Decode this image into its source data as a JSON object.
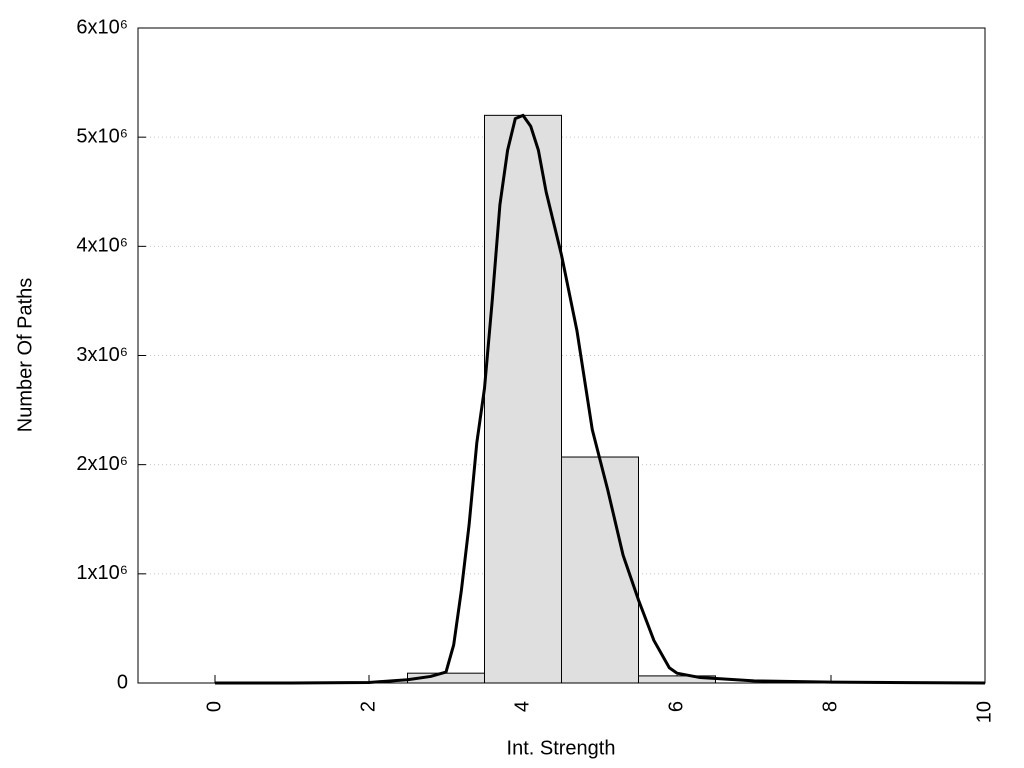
{
  "chart_data": {
    "type": "histogram",
    "xlabel": "Int. Strength",
    "ylabel": "Number Of Paths",
    "bins": [
      2.5,
      3.5,
      4.5,
      5.5,
      6.5
    ],
    "values": [
      90000,
      5200000,
      2070000,
      65000
    ],
    "color": "#dfdfdf",
    "curve": {
      "type": "line",
      "color": "#000000",
      "x": [
        0,
        1,
        2,
        2.5,
        2.8,
        3.0,
        3.1,
        3.2,
        3.3,
        3.4,
        3.5,
        3.6,
        3.7,
        3.8,
        3.9,
        4.0,
        4.1,
        4.2,
        4.3,
        4.5,
        4.7,
        4.9,
        5.1,
        5.3,
        5.5,
        5.7,
        5.9,
        6.0,
        6.3,
        7,
        8,
        9,
        10
      ],
      "values": [
        0,
        0,
        5000,
        30000,
        60000,
        100000,
        350000,
        850000,
        1450000,
        2200000,
        2700000,
        3500000,
        4380000,
        4880000,
        5170000,
        5200000,
        5100000,
        4880000,
        4500000,
        3920000,
        3230000,
        2320000,
        1770000,
        1170000,
        760000,
        390000,
        140000,
        90000,
        50000,
        20000,
        8000,
        3000,
        0
      ]
    },
    "xlim": [
      -1,
      10
    ],
    "xticks": [
      0,
      2,
      4,
      6,
      8,
      10
    ],
    "ylim": [
      0,
      6000000
    ],
    "yticks": [
      0,
      {
        "value": 1000000,
        "label": "1x10⁶"
      },
      {
        "value": 2000000,
        "label": "2x10⁶"
      },
      {
        "value": 3000000,
        "label": "3x10⁶"
      },
      {
        "value": 4000000,
        "label": "4x10⁶"
      },
      {
        "value": 5000000,
        "label": "5x10⁶"
      },
      {
        "value": 6000000,
        "label": "6x10⁶"
      }
    ],
    "grid": true
  }
}
